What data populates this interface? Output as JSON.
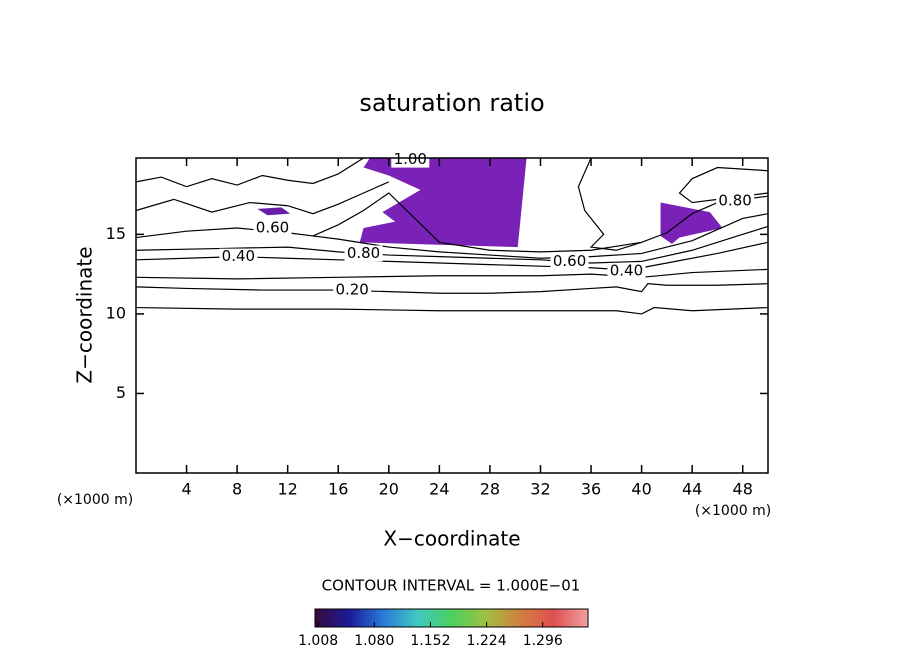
{
  "chart_data": {
    "type": "contour",
    "title": "saturation ratio",
    "xlabel": "X−coordinate",
    "ylabel": "Z−coordinate",
    "x_unit_left": "(×1000 m)",
    "x_unit_right": "(×1000 m)",
    "xlim": [
      0,
      50
    ],
    "ylim": [
      0,
      19.8
    ],
    "xticks": [
      4,
      8,
      12,
      16,
      20,
      24,
      28,
      32,
      36,
      40,
      44,
      48
    ],
    "yticks": [
      5,
      10,
      15
    ],
    "lines": [
      {
        "x": [
          0,
          8,
          16,
          24,
          32,
          38,
          40,
          41,
          44,
          50
        ],
        "y": [
          10.4,
          10.3,
          10.3,
          10.2,
          10.2,
          10.2,
          10.0,
          10.4,
          10.2,
          10.4
        ]
      },
      {
        "x": [
          0,
          4,
          10,
          16,
          20,
          24,
          28,
          32,
          36,
          38,
          40,
          40.5,
          42,
          46,
          50
        ],
        "y": [
          11.7,
          11.6,
          11.5,
          11.5,
          11.4,
          11.3,
          11.3,
          11.4,
          11.6,
          11.7,
          11.4,
          11.9,
          11.8,
          11.8,
          11.9
        ]
      },
      {
        "x": [
          0,
          8,
          16,
          24,
          32,
          36,
          40,
          44,
          50
        ],
        "y": [
          12.3,
          12.2,
          12.3,
          12.4,
          12.4,
          12.5,
          12.3,
          12.6,
          12.8
        ]
      },
      {
        "x": [
          0,
          4,
          8,
          12,
          16,
          20,
          24,
          28,
          32,
          36,
          38,
          40,
          42,
          46,
          50
        ],
        "y": [
          13.4,
          13.5,
          13.6,
          13.5,
          13.4,
          13.3,
          13.2,
          13.1,
          13.0,
          12.9,
          12.8,
          12.9,
          13.2,
          13.8,
          14.5
        ]
      },
      {
        "x": [
          0,
          6,
          12,
          16,
          20,
          24,
          28,
          32,
          36,
          40,
          44,
          48,
          50
        ],
        "y": [
          14,
          14.1,
          14.2,
          13.9,
          13.7,
          13.6,
          13.5,
          13.4,
          13.2,
          13.3,
          14,
          15,
          15.5
        ]
      },
      {
        "x": [
          0,
          4,
          8,
          12,
          14,
          16,
          20,
          24,
          28,
          32,
          36,
          40,
          44,
          48,
          50
        ],
        "y": [
          14.8,
          15.2,
          15.4,
          15.1,
          14.9,
          14.7,
          14.2,
          13.9,
          13.7,
          13.5,
          13.6,
          13.8,
          14.6,
          16,
          16.3
        ]
      },
      {
        "x": [
          14,
          16,
          18,
          20,
          24,
          28,
          32,
          36,
          40,
          42,
          44,
          46,
          48,
          50
        ],
        "y": [
          14.9,
          15.6,
          16.5,
          17.6,
          14.5,
          14,
          13.9,
          14,
          14.5,
          15.1,
          16.3,
          17.0,
          17.2,
          17.4
        ]
      },
      {
        "x": [
          0,
          3,
          6,
          9,
          12,
          14,
          16,
          18,
          20
        ],
        "y": [
          16.5,
          17.2,
          16.4,
          17.0,
          16.8,
          16.3,
          16.9,
          17.6,
          18.3
        ]
      },
      {
        "x": [
          0,
          2,
          4,
          6,
          8,
          10,
          12,
          14,
          16,
          18
        ],
        "y": [
          18.3,
          18.6,
          18.0,
          18.5,
          18.1,
          18.7,
          18.4,
          18.2,
          18.8,
          19.8
        ]
      },
      {
        "x": [
          50,
          46,
          44,
          43,
          44,
          46,
          50
        ],
        "y": [
          19.0,
          19.2,
          18.5,
          17.6,
          17.0,
          17.2,
          17.6
        ]
      },
      {
        "x": [
          36,
          35,
          35.5,
          37,
          36,
          38,
          40
        ],
        "y": [
          19.8,
          18,
          16.5,
          15,
          14.2,
          14,
          14.5
        ]
      }
    ],
    "regions": [
      {
        "color": "#7a22b8",
        "x": [
          18,
          18.5,
          30.9,
          30.2,
          17.7,
          18,
          20.5,
          19.5,
          22.5,
          20,
          18
        ],
        "y": [
          19.2,
          19.8,
          19.8,
          14.2,
          14.5,
          15.4,
          15.8,
          16.4,
          17.8,
          18.7,
          19.2
        ]
      },
      {
        "color": "#7a22b8",
        "x": [
          41.5,
          45.4,
          46.4,
          43,
          42.4,
          41.5
        ],
        "y": [
          17.0,
          16.4,
          15.4,
          14.8,
          14.4,
          14.9
        ]
      },
      {
        "color": "#6a1fa8",
        "x": [
          9.6,
          11.5,
          12.2,
          10.4
        ],
        "y": [
          16.6,
          16.7,
          16.3,
          16.2
        ]
      }
    ],
    "contour_labels": [
      {
        "level": {
          "value": 0.2,
          "label": "0.20"
        },
        "x": 17.1,
        "y": 11.5
      },
      {
        "level": {
          "value": 0.4,
          "label": "0.40"
        },
        "x": 8.1,
        "y": 13.6
      },
      {
        "level": {
          "value": 0.4,
          "label": "0.40"
        },
        "x": 38.8,
        "y": 12.7
      },
      {
        "level": {
          "value": 0.6,
          "label": "0.60"
        },
        "x": 10.8,
        "y": 15.4
      },
      {
        "level": {
          "value": 0.6,
          "label": "0.60"
        },
        "x": 34.3,
        "y": 13.3
      },
      {
        "level": {
          "value": 0.8,
          "label": "0.80"
        },
        "x": 18,
        "y": 13.8
      },
      {
        "level": {
          "value": 0.8,
          "label": "0.80"
        },
        "x": 47.4,
        "y": 17.1
      },
      {
        "level": {
          "value": 1.0,
          "label": "1.00"
        },
        "x": 21.7,
        "y": 19.7
      }
    ],
    "contour_interval": "CONTOUR INTERVAL = 1.000E−01",
    "clim": [
      1.004,
      1.354
    ],
    "colormap": [
      "#3a0a3a",
      "#1a1a9a",
      "#2a7ad8",
      "#40c8c0",
      "#4ad060",
      "#a0c040",
      "#d08040",
      "#e05050",
      "#f0a0a0"
    ],
    "cticks": [
      1.008,
      {
        "value": 1.08,
        "label": "1.080"
      },
      1.152,
      1.224,
      1.296
    ]
  }
}
